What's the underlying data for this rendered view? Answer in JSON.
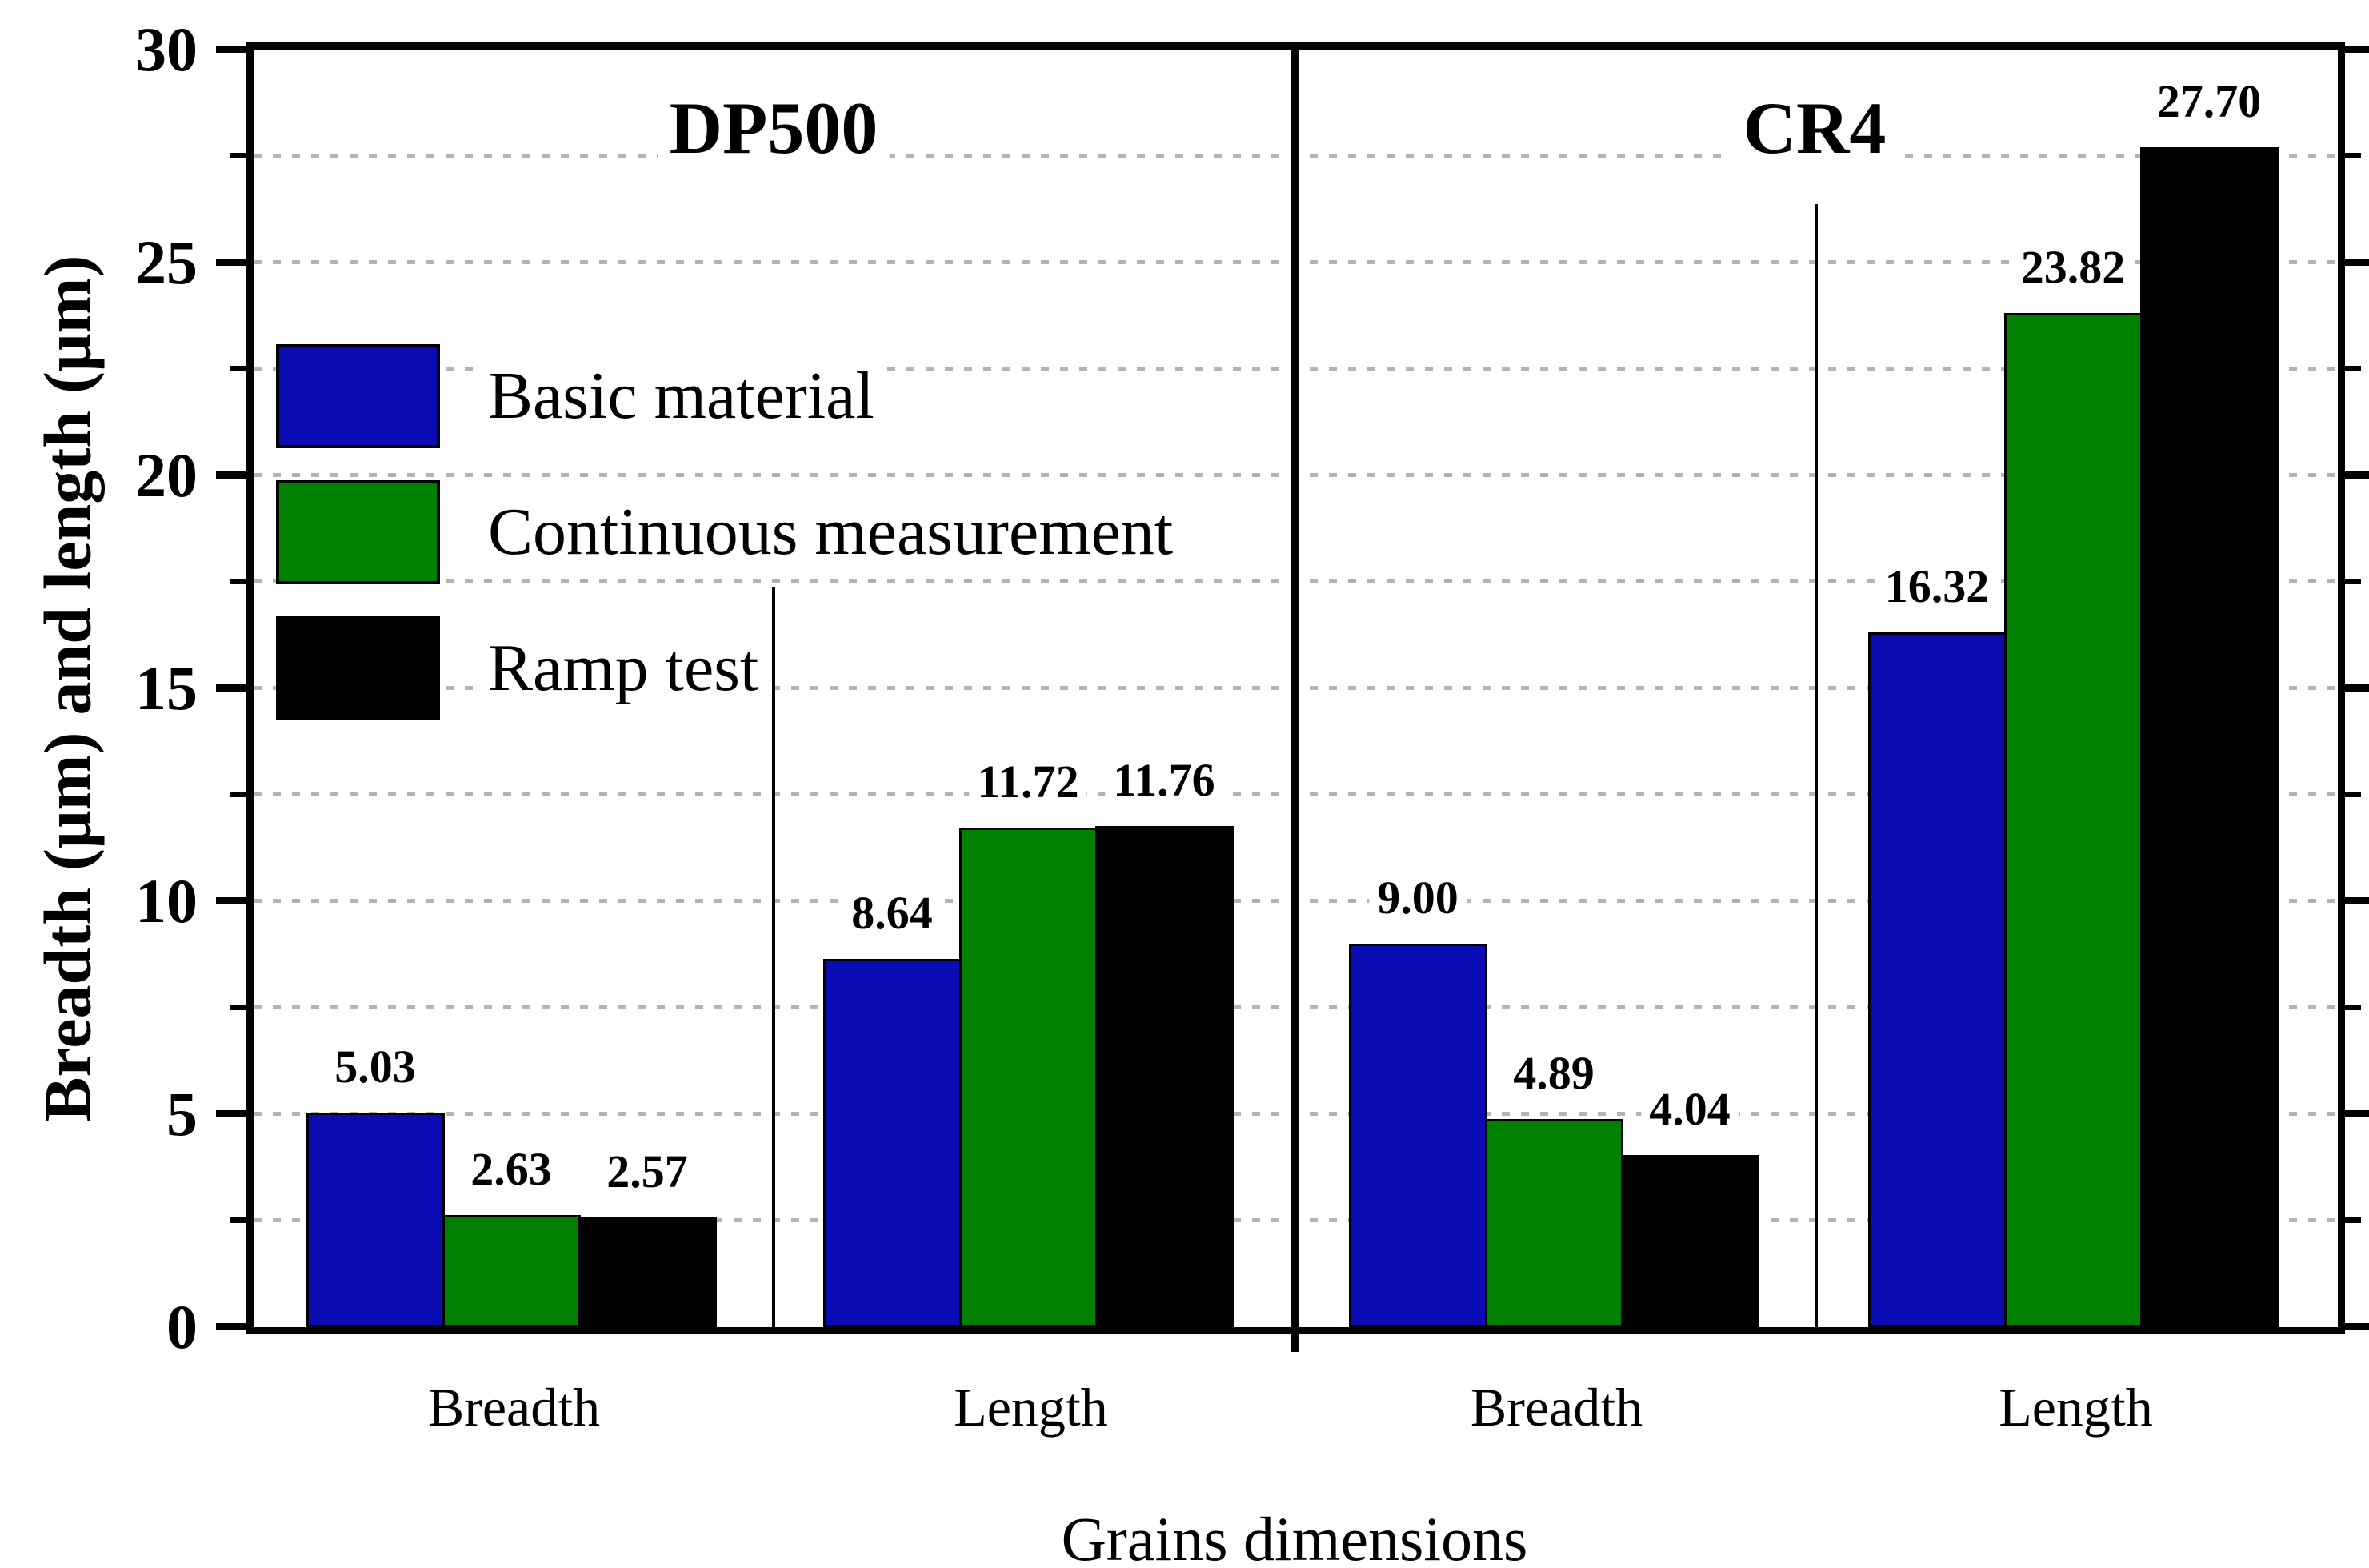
{
  "chart_data": {
    "type": "bar",
    "title": "",
    "xlabel": "Grains dimensions",
    "ylabel": "Breadth (μm) and length (μm)",
    "ylim": [
      0,
      30
    ],
    "yticks": [
      0,
      5,
      10,
      15,
      20,
      25,
      30
    ],
    "minor_tick_step": 2.5,
    "gridlines": [
      2.5,
      5,
      7.5,
      10,
      12.5,
      15,
      17.5,
      20,
      22.5,
      25,
      27.5
    ],
    "grid_style": "dotted",
    "legend_position": "upper-left-inside",
    "series": [
      {
        "name": "Basic material",
        "color": "#0b0bb4"
      },
      {
        "name": "Continuous measurement",
        "color": "#008000"
      },
      {
        "name": "Ramp test",
        "color": "#000000"
      }
    ],
    "panels": [
      {
        "label": "DP500",
        "groups": [
          {
            "category": "Breadth",
            "values": [
              5.03,
              2.63,
              2.57
            ]
          },
          {
            "category": "Length",
            "values": [
              8.64,
              11.72,
              11.76
            ]
          }
        ]
      },
      {
        "label": "CR4",
        "groups": [
          {
            "category": "Breadth",
            "values": [
              9.0,
              4.89,
              4.04
            ]
          },
          {
            "category": "Length",
            "values": [
              16.32,
              23.82,
              27.7
            ]
          }
        ]
      }
    ]
  },
  "layout_note": "values are shown as data labels with two decimals above each bar"
}
